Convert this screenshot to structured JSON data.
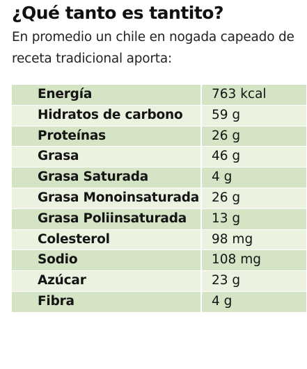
{
  "title": "¿Qué tanto es tantito?",
  "subtitle": "En promedio un chile en nogada capeado de receta tradicional aporta:",
  "nutrition": [
    {
      "nutrient": "Energía",
      "amount": "763 kcal"
    },
    {
      "nutrient": "Hidratos de carbono",
      "amount": "59 g"
    },
    {
      "nutrient": "Proteínas",
      "amount": "26 g"
    },
    {
      "nutrient": "Grasa",
      "amount": "46 g"
    },
    {
      "nutrient": "Grasa Saturada",
      "amount": "4 g"
    },
    {
      "nutrient": "Grasa Monoinsaturada",
      "amount": "26 g"
    },
    {
      "nutrient": "Grasa Poliinsaturada",
      "amount": "13 g"
    },
    {
      "nutrient": "Colesterol",
      "amount": "98 mg"
    },
    {
      "nutrient": "Sodio",
      "amount": "108 mg"
    },
    {
      "nutrient": "Azúcar",
      "amount": "23 g"
    },
    {
      "nutrient": "Fibra",
      "amount": "4 g"
    }
  ],
  "colors": {
    "row_odd": "#d5e4c4",
    "row_even": "#ebf2e0"
  }
}
